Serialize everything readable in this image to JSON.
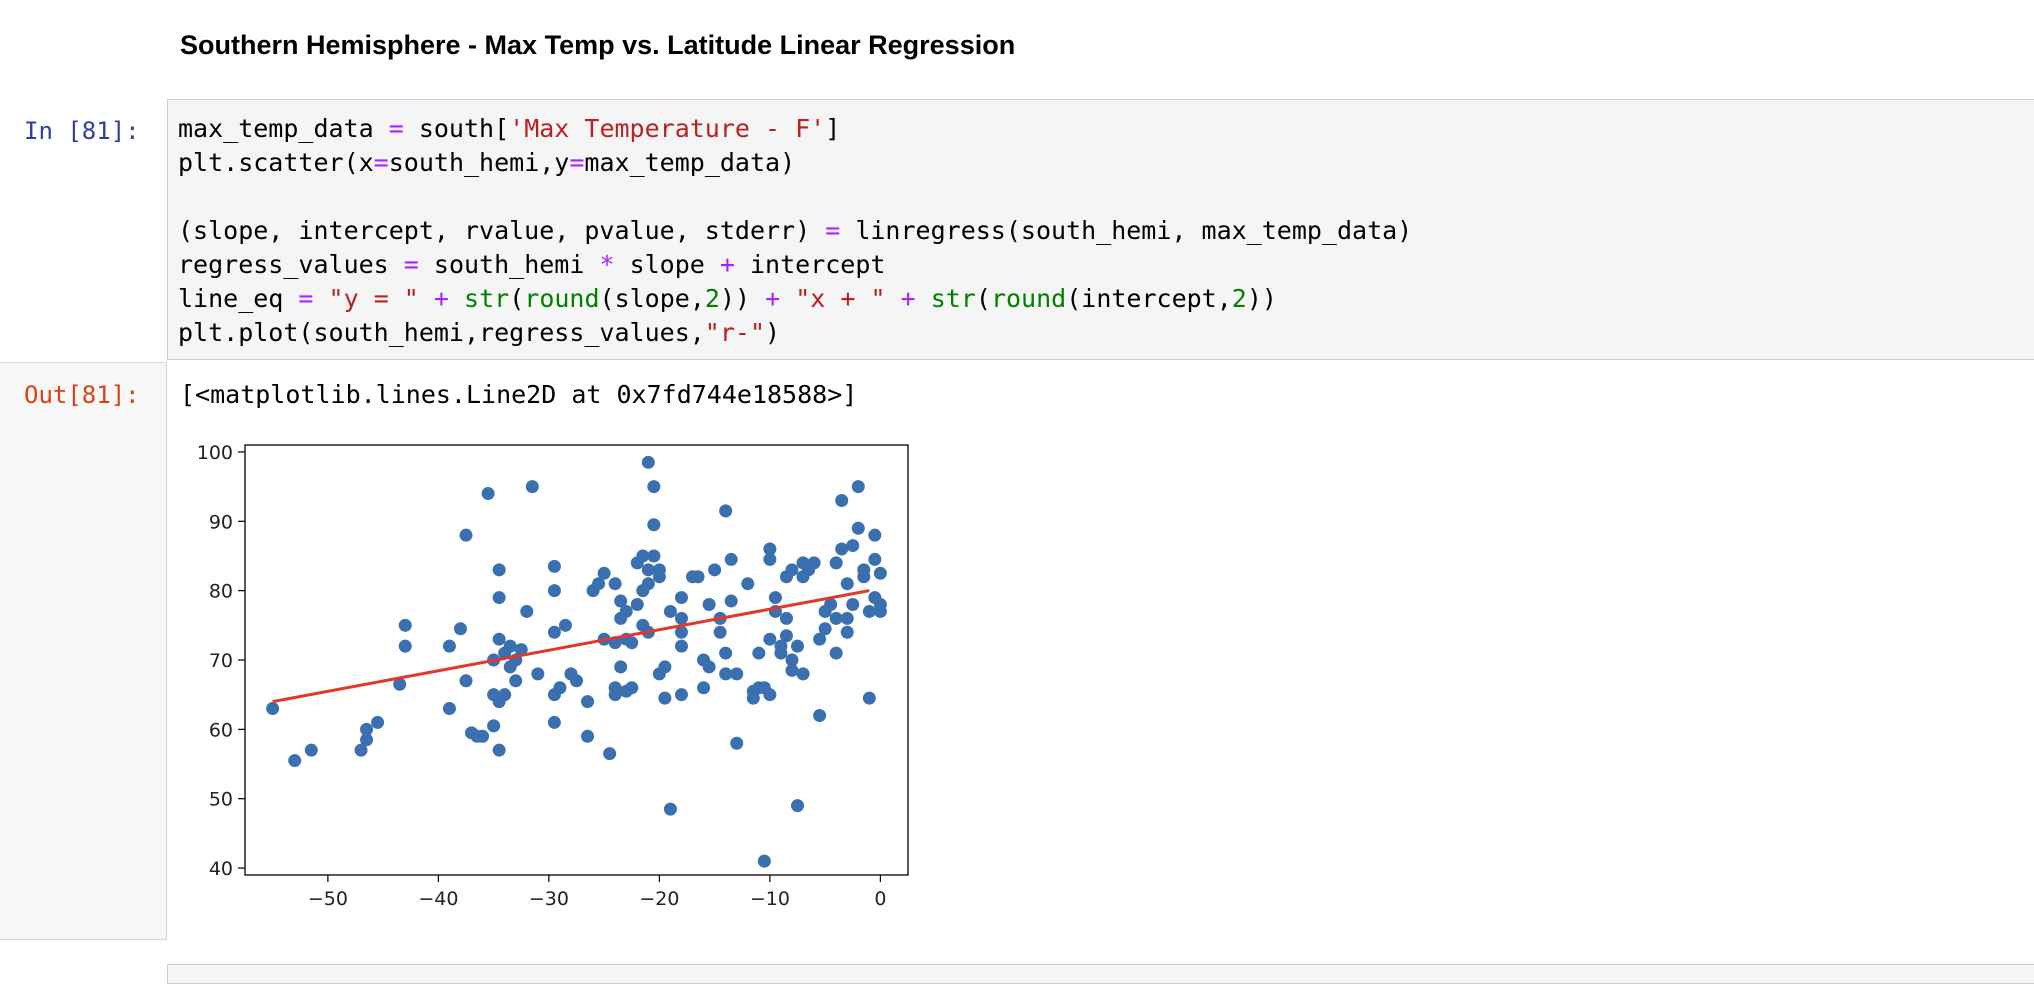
{
  "notebook": {
    "heading": "Southern Hemisphere - Max Temp vs. Latitude Linear Regression",
    "in_prompt": "In [81]:",
    "out_prompt": "Out[81]:",
    "code_lines": [
      "max_temp_data = south['Max Temperature - F']",
      "plt.scatter(x=south_hemi,y=max_temp_data)",
      "",
      "(slope, intercept, rvalue, pvalue, stderr) = linregress(south_hemi, max_temp_data)",
      "regress_values = south_hemi * slope + intercept",
      "line_eq = \"y = \" + str(round(slope,2)) + \"x + \" + str(round(intercept,2))",
      "plt.plot(south_hemi,regress_values,\"r-\")"
    ],
    "output_text": "[<matplotlib.lines.Line2D at 0x7fd744e18588>]"
  },
  "colors": {
    "points": "#3a6fb0",
    "regression_line": "#e2372a",
    "in_prompt": "#303f9f",
    "out_prompt": "#d84315"
  },
  "chart_data": {
    "type": "scatter",
    "title": "",
    "xlabel": "",
    "ylabel": "",
    "xlim": [
      -57.5,
      2.5
    ],
    "ylim": [
      39,
      101
    ],
    "xticks": [
      -50,
      -40,
      -30,
      -20,
      -10,
      0
    ],
    "yticks": [
      40,
      50,
      60,
      70,
      80,
      90,
      100
    ],
    "grid": false,
    "points": [
      [
        -55,
        63
      ],
      [
        -53,
        55.5
      ],
      [
        -51.5,
        57
      ],
      [
        -47,
        57
      ],
      [
        -46.5,
        60
      ],
      [
        -46.5,
        58.5
      ],
      [
        -45.5,
        61
      ],
      [
        -43.5,
        66.5
      ],
      [
        -43,
        75
      ],
      [
        -43,
        72
      ],
      [
        -39,
        63
      ],
      [
        -39,
        72
      ],
      [
        -38,
        74.5
      ],
      [
        -37.5,
        67
      ],
      [
        -37.5,
        88
      ],
      [
        -37,
        59.5
      ],
      [
        -36.5,
        59
      ],
      [
        -36,
        59
      ],
      [
        -35.5,
        94
      ],
      [
        -35,
        60.5
      ],
      [
        -35,
        65
      ],
      [
        -35,
        70
      ],
      [
        -34.5,
        83
      ],
      [
        -34.5,
        79
      ],
      [
        -34.5,
        73
      ],
      [
        -34.5,
        64
      ],
      [
        -34.5,
        57
      ],
      [
        -34,
        65
      ],
      [
        -34,
        71
      ],
      [
        -33.5,
        72
      ],
      [
        -33.5,
        69
      ],
      [
        -33,
        70
      ],
      [
        -33,
        67
      ],
      [
        -32.5,
        71.5
      ],
      [
        -32,
        77
      ],
      [
        -31.5,
        95
      ],
      [
        -31,
        68
      ],
      [
        -29.5,
        74
      ],
      [
        -29.5,
        83.5
      ],
      [
        -29.5,
        80
      ],
      [
        -29.5,
        65
      ],
      [
        -29.5,
        61
      ],
      [
        -29,
        66
      ],
      [
        -28.5,
        75
      ],
      [
        -28,
        68
      ],
      [
        -27.5,
        67
      ],
      [
        -26.5,
        64
      ],
      [
        -26.5,
        59
      ],
      [
        -26,
        80
      ],
      [
        -25.5,
        81
      ],
      [
        -25,
        82.5
      ],
      [
        -25,
        73
      ],
      [
        -24.5,
        56.5
      ],
      [
        -24,
        81
      ],
      [
        -24,
        66
      ],
      [
        -24,
        65
      ],
      [
        -24,
        72.5
      ],
      [
        -23.5,
        76
      ],
      [
        -23.5,
        78.5
      ],
      [
        -23.5,
        69
      ],
      [
        -23,
        77
      ],
      [
        -23,
        73
      ],
      [
        -23,
        65.5
      ],
      [
        -22.5,
        72.5
      ],
      [
        -22.5,
        66
      ],
      [
        -22,
        84
      ],
      [
        -22,
        78
      ],
      [
        -21.5,
        85
      ],
      [
        -21.5,
        80
      ],
      [
        -21.5,
        75
      ],
      [
        -21,
        83
      ],
      [
        -21,
        81
      ],
      [
        -21,
        74
      ],
      [
        -21,
        98.5
      ],
      [
        -20.5,
        95
      ],
      [
        -20.5,
        89.5
      ],
      [
        -20.5,
        85
      ],
      [
        -20,
        82
      ],
      [
        -20,
        83
      ],
      [
        -20,
        68
      ],
      [
        -19.5,
        69
      ],
      [
        -19.5,
        64.5
      ],
      [
        -19,
        77
      ],
      [
        -19,
        48.5
      ],
      [
        -18,
        76
      ],
      [
        -18,
        74
      ],
      [
        -18,
        72
      ],
      [
        -18,
        79
      ],
      [
        -18,
        65
      ],
      [
        -17,
        82
      ],
      [
        -16.5,
        82
      ],
      [
        -16,
        70
      ],
      [
        -16,
        66
      ],
      [
        -15.5,
        69
      ],
      [
        -15.5,
        78
      ],
      [
        -15,
        83
      ],
      [
        -14.5,
        76
      ],
      [
        -14.5,
        74
      ],
      [
        -14,
        91.5
      ],
      [
        -14,
        71
      ],
      [
        -14,
        68
      ],
      [
        -13.5,
        78.5
      ],
      [
        -13.5,
        84.5
      ],
      [
        -13,
        58
      ],
      [
        -13,
        68
      ],
      [
        -12,
        81
      ],
      [
        -11.5,
        65.5
      ],
      [
        -11.5,
        64.5
      ],
      [
        -11,
        71
      ],
      [
        -11,
        66
      ],
      [
        -10.5,
        41
      ],
      [
        -10.5,
        66
      ],
      [
        -10,
        86
      ],
      [
        -10,
        84.5
      ],
      [
        -10,
        73
      ],
      [
        -10,
        65
      ],
      [
        -9.5,
        79
      ],
      [
        -9.5,
        77
      ],
      [
        -9,
        71
      ],
      [
        -9,
        72
      ],
      [
        -8.5,
        82
      ],
      [
        -8.5,
        73.5
      ],
      [
        -8.5,
        76
      ],
      [
        -8,
        83
      ],
      [
        -8,
        70
      ],
      [
        -8,
        68.5
      ],
      [
        -7.5,
        49
      ],
      [
        -7.5,
        72
      ],
      [
        -7,
        84
      ],
      [
        -7,
        82
      ],
      [
        -7,
        68
      ],
      [
        -6.5,
        83
      ],
      [
        -6,
        84
      ],
      [
        -5.5,
        73
      ],
      [
        -5.5,
        62
      ],
      [
        -5,
        74.5
      ],
      [
        -5,
        77
      ],
      [
        -4.5,
        78
      ],
      [
        -4,
        76
      ],
      [
        -4,
        71
      ],
      [
        -4,
        84
      ],
      [
        -3.5,
        86
      ],
      [
        -3.5,
        93
      ],
      [
        -3,
        76
      ],
      [
        -3,
        74
      ],
      [
        -3,
        81
      ],
      [
        -2.5,
        86.5
      ],
      [
        -2.5,
        78
      ],
      [
        -2,
        89
      ],
      [
        -2,
        95
      ],
      [
        -1.5,
        83
      ],
      [
        -1.5,
        82
      ],
      [
        -1,
        77
      ],
      [
        -1,
        64.5
      ],
      [
        -0.5,
        88
      ],
      [
        -0.5,
        84.5
      ],
      [
        -0.5,
        79
      ],
      [
        0,
        78
      ],
      [
        0,
        77
      ],
      [
        0,
        82.5
      ]
    ],
    "regression_line": {
      "x": [
        -55,
        -1
      ],
      "y": [
        64,
        80
      ]
    }
  }
}
